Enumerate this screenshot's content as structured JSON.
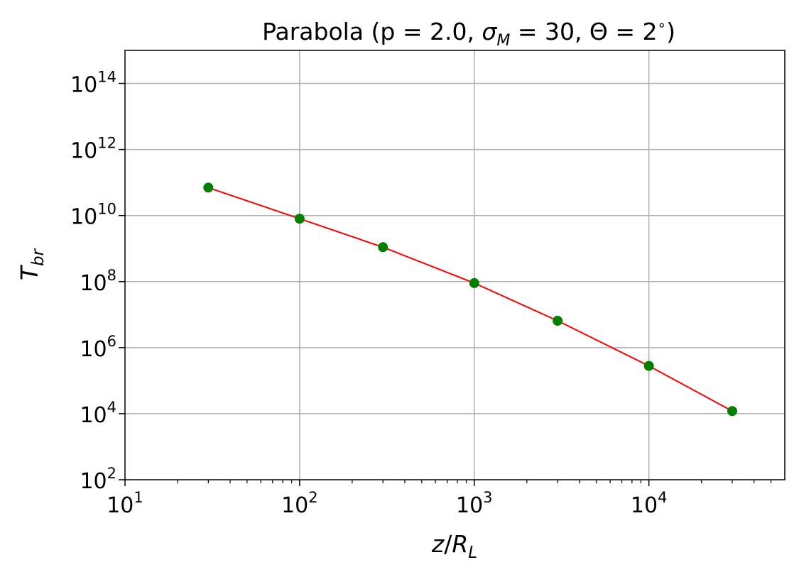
{
  "chart_data": {
    "type": "scatter",
    "title_main": "Parabola (p = 2.0, ",
    "title_sigma": "σ",
    "title_sigma_sub": "M",
    "title_rest": " = 30, Θ = 2",
    "title_degree": "∘",
    "title_close": ")",
    "xlabel_z": "z",
    "xlabel_slash": "/",
    "xlabel_R": "R",
    "xlabel_sub": "L",
    "ylabel_T": "T",
    "ylabel_sub": "br",
    "xscale": "log",
    "yscale": "log",
    "xlim": [
      10,
      60000
    ],
    "ylim": [
      100,
      1000000000000000.0
    ],
    "x_ticks": [
      {
        "value": 10,
        "base": "10",
        "exp": "1"
      },
      {
        "value": 100,
        "base": "10",
        "exp": "2"
      },
      {
        "value": 1000,
        "base": "10",
        "exp": "3"
      },
      {
        "value": 10000,
        "base": "10",
        "exp": "4"
      }
    ],
    "y_ticks": [
      {
        "value": 100,
        "base": "10",
        "exp": "2"
      },
      {
        "value": 10000,
        "base": "10",
        "exp": "4"
      },
      {
        "value": 1000000,
        "base": "10",
        "exp": "6"
      },
      {
        "value": 100000000,
        "base": "10",
        "exp": "8"
      },
      {
        "value": 10000000000,
        "base": "10",
        "exp": "10"
      },
      {
        "value": 1000000000000,
        "base": "10",
        "exp": "12"
      },
      {
        "value": 100000000000000,
        "base": "10",
        "exp": "14"
      }
    ],
    "grid": true,
    "series": [
      {
        "x": [
          30,
          100,
          300,
          1000,
          3000,
          10000,
          30000
        ],
        "y": [
          70000000000.0,
          8000000000.0,
          1100000000.0,
          90000000.0,
          6500000.0,
          280000.0,
          12000.0
        ],
        "marker_color": "#008000",
        "line_color": "#ff0000"
      }
    ]
  }
}
